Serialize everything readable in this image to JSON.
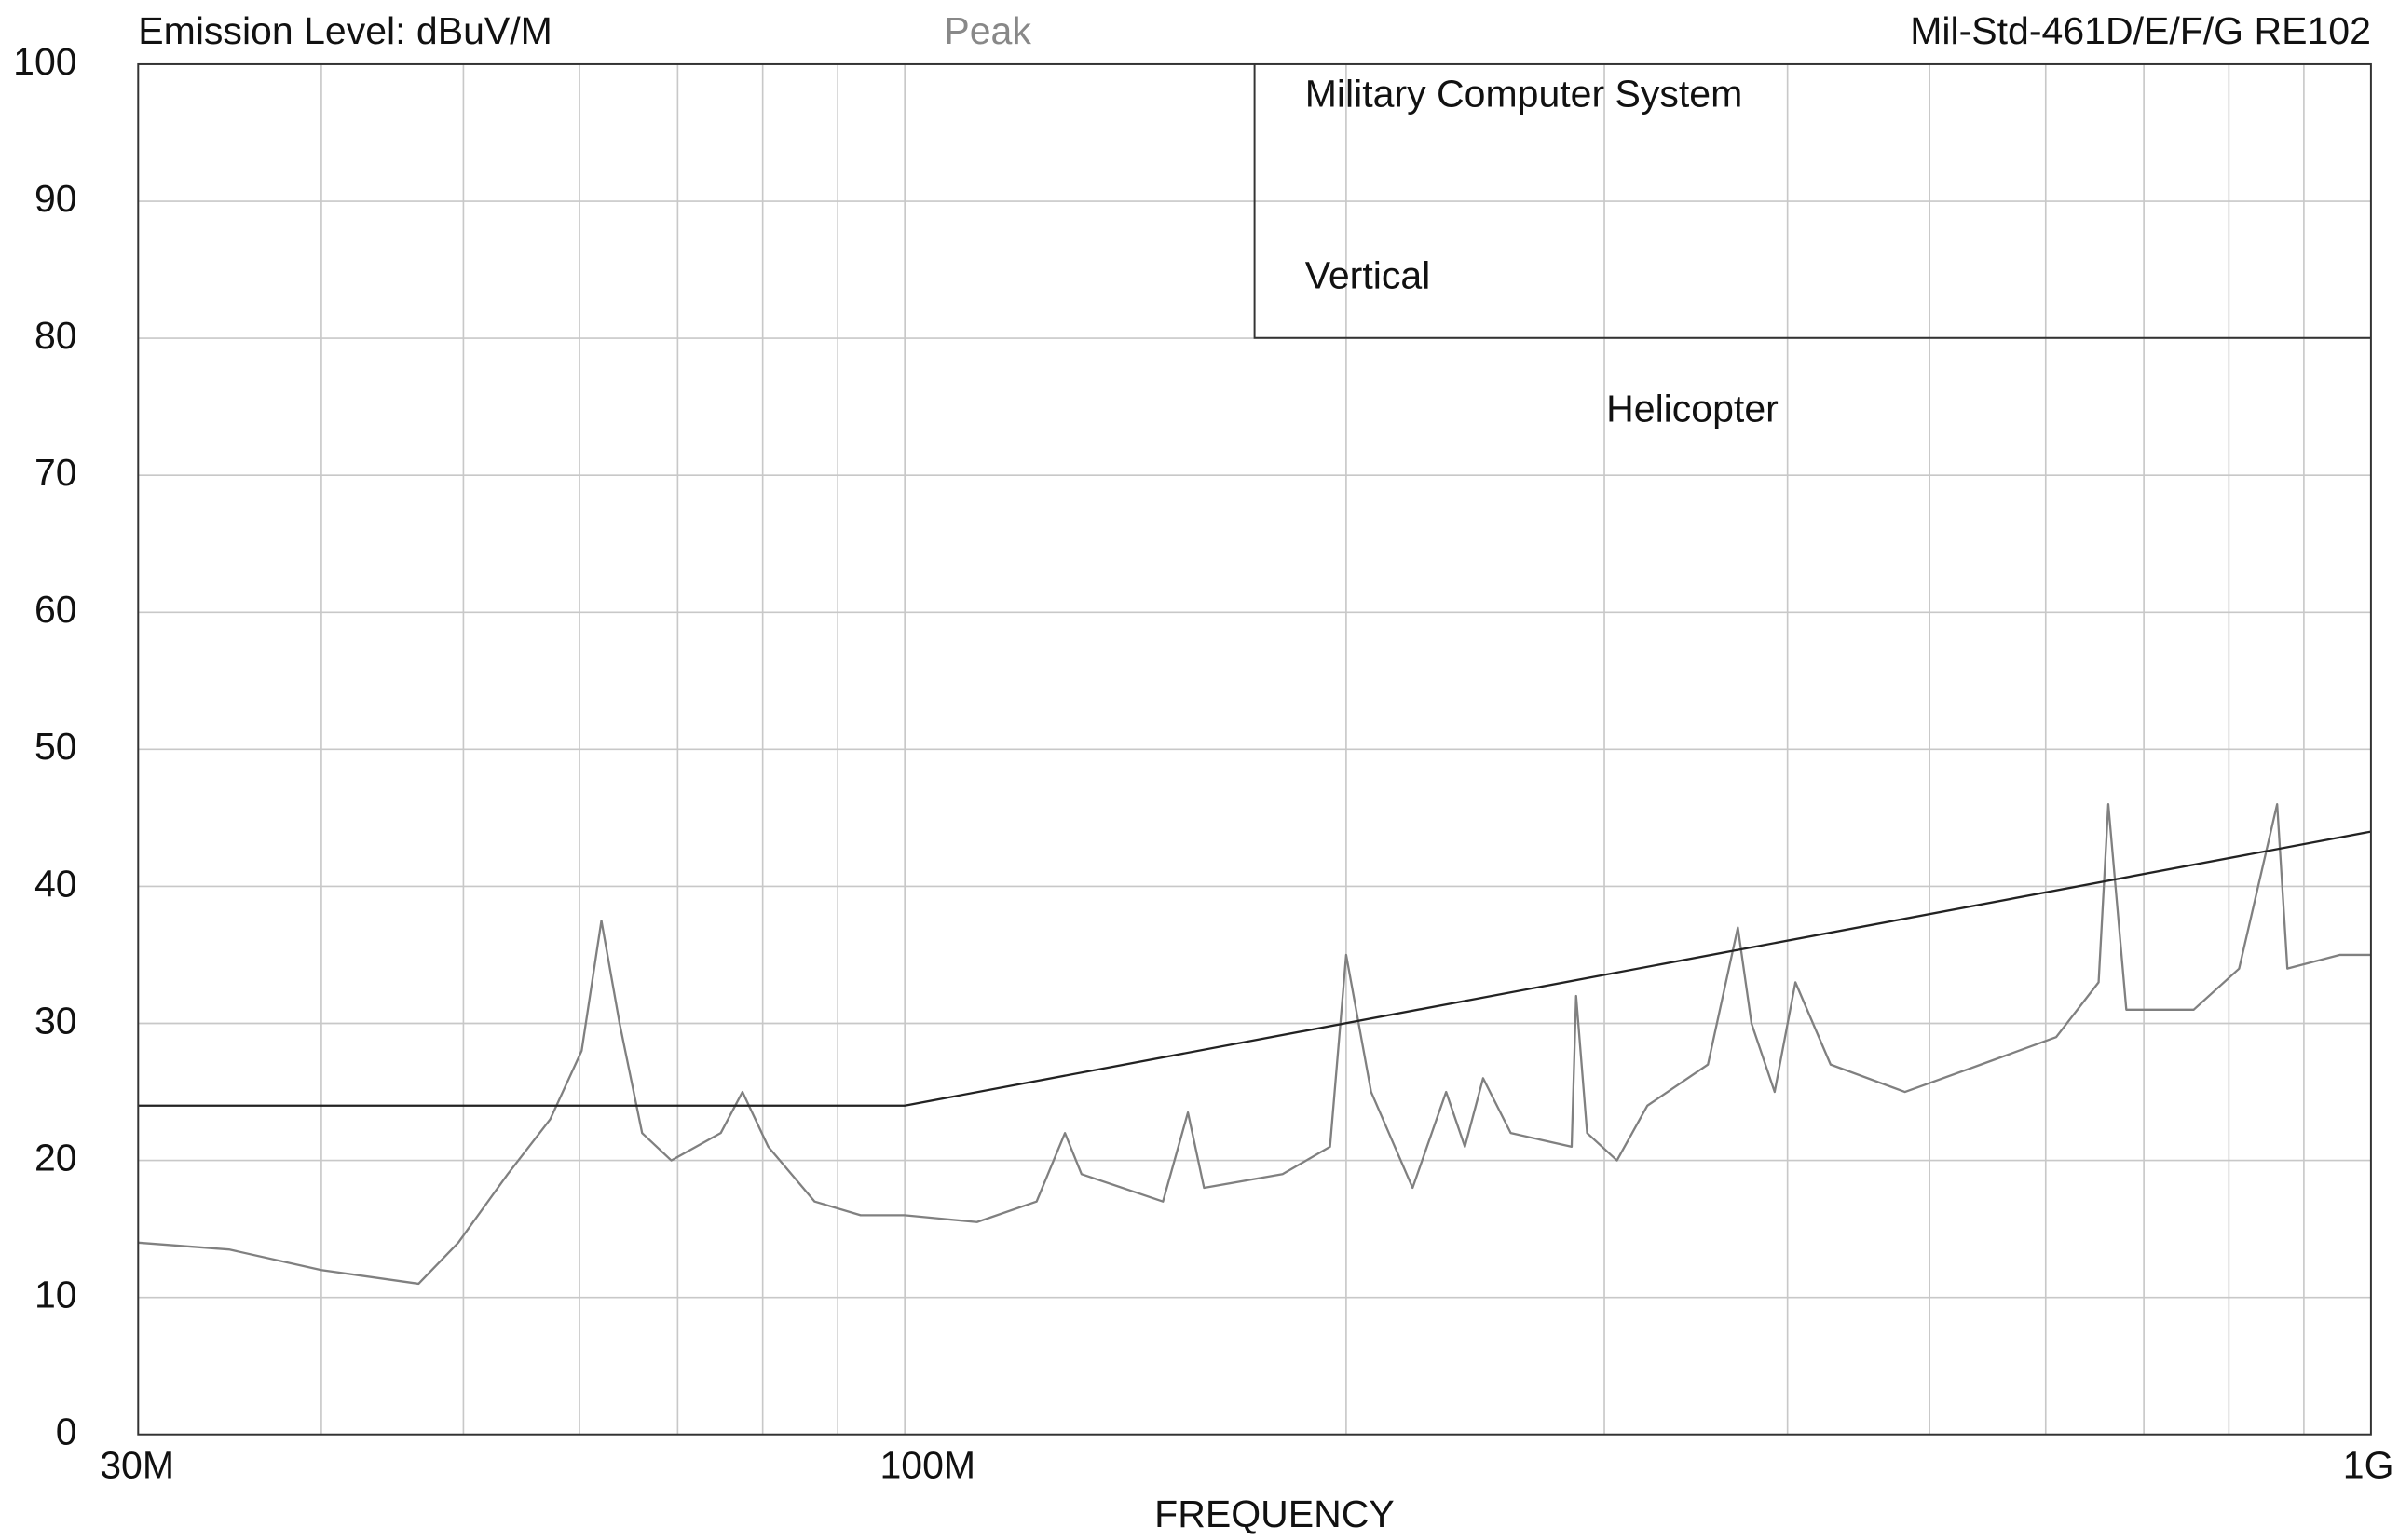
{
  "chart_data": {
    "type": "line",
    "ylabel": "Emission Level: dBuV/M",
    "subtitle": "Peak",
    "title": "Mil-Std-461D/E/F/G RE102",
    "annotations": [
      "Military Computer System",
      "Vertical",
      "Helicopter"
    ],
    "xlabel": "FREQUENCY",
    "xscale": "log",
    "grid": true,
    "xlim": [
      30000000,
      1000000000
    ],
    "ylim": [
      0,
      100
    ],
    "yticks": [
      0,
      10,
      20,
      30,
      40,
      50,
      60,
      70,
      80,
      90,
      100
    ],
    "xticks": [
      {
        "value": 30000000,
        "label": "30M"
      },
      {
        "value": 40000000,
        "label": null
      },
      {
        "value": 50000000,
        "label": null
      },
      {
        "value": 60000000,
        "label": null
      },
      {
        "value": 70000000,
        "label": null
      },
      {
        "value": 80000000,
        "label": null
      },
      {
        "value": 90000000,
        "label": null
      },
      {
        "value": 100000000,
        "label": "100M"
      },
      {
        "value": 200000000,
        "label": null
      },
      {
        "value": 300000000,
        "label": null
      },
      {
        "value": 400000000,
        "label": null
      },
      {
        "value": 500000000,
        "label": null
      },
      {
        "value": 600000000,
        "label": null
      },
      {
        "value": 700000000,
        "label": null
      },
      {
        "value": 800000000,
        "label": null
      },
      {
        "value": 900000000,
        "label": null
      },
      {
        "value": 1000000000,
        "label": "1G"
      }
    ],
    "series": [
      {
        "color": "#808080",
        "x": [
          30000000,
          34600000,
          40000000,
          46600000,
          49600000,
          53600000,
          57300000,
          60200000,
          62100000,
          63900000,
          66200000,
          69300000,
          74900000,
          77500000,
          80700000,
          86800000,
          93300000,
          100000000,
          112000000,
          123000000,
          128600000,
          132000000,
          150000000,
          156000000,
          160000000,
          181000000,
          195000000,
          200000000,
          208000000,
          222000000,
          234000000,
          241000000,
          248000000,
          259000000,
          285000000,
          287000000,
          292000000,
          306000000,
          321000000,
          353000000,
          370000000,
          378000000,
          392000000,
          405000000,
          428000000,
          481000000,
          542000000,
          610000000,
          652000000,
          662000000,
          681000000,
          757000000,
          813000000,
          863000000,
          877000000,
          952000000,
          1000000000
        ],
        "values": [
          14,
          13.5,
          12,
          11,
          14,
          19,
          23,
          28,
          37.5,
          30,
          22,
          20,
          22,
          25,
          21,
          17,
          16,
          16,
          15.5,
          17,
          22,
          19,
          17,
          23.5,
          18,
          19,
          21,
          35,
          25,
          18,
          25,
          21,
          26,
          22,
          21,
          32,
          22,
          20,
          24,
          27,
          37,
          30,
          25,
          33,
          27,
          25,
          27,
          29,
          33,
          46,
          31,
          31,
          34,
          46,
          34,
          35,
          35
        ]
      },
      {
        "color": "#222222",
        "x": [
          30000000,
          100000000,
          1000000000
        ],
        "values": [
          24,
          24,
          44
        ]
      }
    ]
  }
}
